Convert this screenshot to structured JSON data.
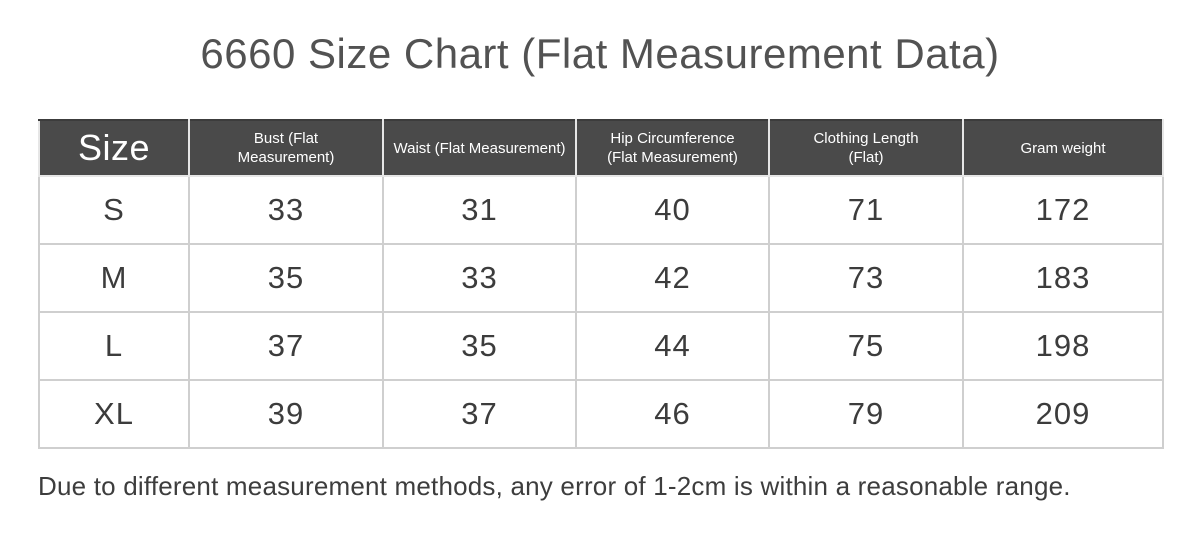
{
  "title": "6660 Size Chart (Flat Measurement Data)",
  "footnote": "Due to different measurement methods, any error of 1-2cm is within a reasonable range.",
  "table": {
    "headers": [
      {
        "id": "size",
        "label": "Size"
      },
      {
        "id": "bust",
        "label": "Bust (Flat\nMeasurement)"
      },
      {
        "id": "waist",
        "label": "Waist (Flat Measurement)"
      },
      {
        "id": "hip",
        "label": "Hip Circumference\n(Flat Measurement)"
      },
      {
        "id": "length",
        "label": "Clothing Length\n(Flat)"
      },
      {
        "id": "gram",
        "label": "Gram weight"
      }
    ],
    "rows": [
      [
        "S",
        "33",
        "31",
        "40",
        "71",
        "172"
      ],
      [
        "M",
        "35",
        "33",
        "42",
        "73",
        "183"
      ],
      [
        "L",
        "37",
        "35",
        "44",
        "75",
        "198"
      ],
      [
        "XL",
        "39",
        "37",
        "46",
        "79",
        "209"
      ]
    ]
  },
  "chart_data": {
    "type": "table",
    "title": "6660 Size Chart (Flat Measurement Data)",
    "columns": [
      "Size",
      "Bust (Flat Measurement)",
      "Waist (Flat Measurement)",
      "Hip Circumference (Flat Measurement)",
      "Clothing Length (Flat)",
      "Gram weight"
    ],
    "rows": [
      {
        "size": "S",
        "bust": 33,
        "waist": 31,
        "hip": 40,
        "clothing_length": 71,
        "gram_weight": 172
      },
      {
        "size": "M",
        "bust": 35,
        "waist": 33,
        "hip": 42,
        "clothing_length": 73,
        "gram_weight": 183
      },
      {
        "size": "L",
        "bust": 37,
        "waist": 35,
        "hip": 44,
        "clothing_length": 75,
        "gram_weight": 198
      },
      {
        "size": "XL",
        "bust": 39,
        "waist": 37,
        "hip": 46,
        "clothing_length": 79,
        "gram_weight": 209
      }
    ],
    "note": "Due to different measurement methods, any error of 1-2cm is within a reasonable range."
  },
  "colors": {
    "header_bg": "#4a4a4a",
    "header_text": "#ffffff",
    "body_text": "#3c3c3c",
    "title_text": "#525252",
    "border": "#cfcfcf",
    "background": "#ffffff"
  }
}
